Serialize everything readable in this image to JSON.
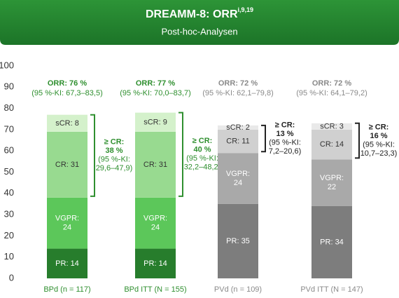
{
  "chart_data": {
    "type": "stacked-bar",
    "title": "DREAMM-8: ORR",
    "title_superscript": "i,9,19",
    "subtitle": "Post-hoc-Analysen",
    "categories": [
      "BPd (n = 117)",
      "BPd ITT (N = 155)",
      "PVd (n = 109)",
      "PVd  ITT (N = 147)"
    ],
    "category_colors": [
      "#2f8f2f",
      "#2f8f2f",
      "#8a8a8a",
      "#8a8a8a"
    ],
    "series": [
      {
        "name": "PR",
        "colors": [
          "#277d2c",
          "#277d2c",
          "#7d7d7d",
          "#7d7d7d"
        ],
        "label_color": "#ffffff",
        "values": [
          14,
          14,
          35,
          34
        ],
        "value_labels": [
          "PR: 14",
          "PR: 14",
          "PR: 35",
          "PR: 34"
        ]
      },
      {
        "name": "VGPR",
        "colors": [
          "#5cc75a",
          "#5cc75a",
          "#a9a9a9",
          "#a9a9a9"
        ],
        "label_color": "#ffffff",
        "values": [
          24,
          24,
          24,
          22
        ],
        "value_labels": [
          "VGPR:\n24",
          "VGPR:\n24",
          "VGPR:\n24",
          "VGPR:\n22"
        ]
      },
      {
        "name": "CR",
        "colors": [
          "#98da90",
          "#98da90",
          "#d0d0d0",
          "#d0d0d0"
        ],
        "label_color": "#333333",
        "values": [
          31,
          31,
          11,
          14
        ],
        "value_labels": [
          "CR: 31",
          "CR: 31",
          "CR: 11",
          "CR: 14"
        ]
      },
      {
        "name": "sCR",
        "colors": [
          "#d4f1cb",
          "#d4f1cb",
          "#e9e9e9",
          "#e9e9e9"
        ],
        "label_color": "#333333",
        "values": [
          8,
          9,
          2,
          3
        ],
        "value_labels": [
          "sCR: 8",
          "sCR: 9",
          "sCR: 2",
          "sCR: 3"
        ]
      }
    ],
    "orr_labels": [
      "ORR: 76 %",
      "ORR: 77 %",
      "ORR: 72 %",
      "ORR: 72 %"
    ],
    "orr_ci": [
      "(95 %-KI: 67,3–83,5)",
      "(95 %-KI: 70,0–83,7)",
      "(95 %-KI: 62,1–79,8)",
      "(95 %-KI: 64,1–79,2)"
    ],
    "cr_labels": [
      [
        "≥ CR:",
        "38 %",
        "(95 %-KI:",
        "29,6–47,9)"
      ],
      [
        "≥ CR:",
        "40 %",
        "(95 %-KI:",
        "32,2–48,2)"
      ],
      [
        "≥ CR:",
        "13 %",
        "(95 %-KI:",
        "7,2–20,6)"
      ],
      [
        "≥ CR:",
        "16 %",
        "(95 %-KI:",
        "10,7–23,3)"
      ]
    ],
    "cr_colors": [
      "#2f8f2f",
      "#2f8f2f",
      "#222222",
      "#222222"
    ],
    "ylim": [
      0,
      100
    ],
    "yticks": [
      0,
      10,
      20,
      30,
      40,
      50,
      60,
      70,
      80,
      90,
      100
    ]
  }
}
